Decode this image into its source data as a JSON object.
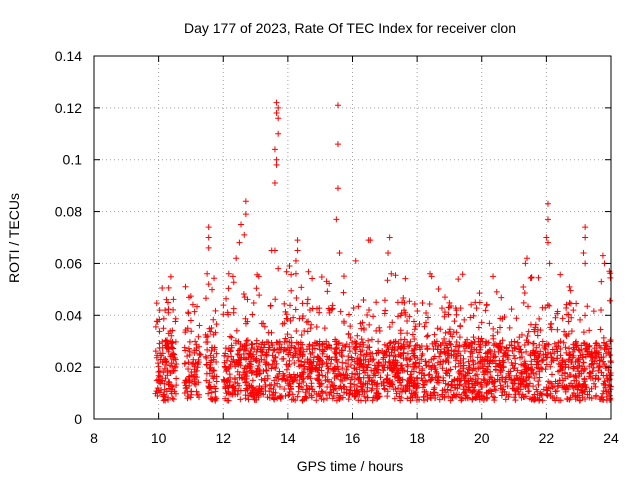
{
  "chart_data": {
    "type": "scatter",
    "title": "Day 177 of 2023, Rate Of TEC Index for receiver clon",
    "xlabel": "GPS time / hours",
    "ylabel": "ROTI / TECUs",
    "xlim": [
      8,
      24
    ],
    "ylim": [
      0,
      0.14
    ],
    "xticks": [
      "8",
      "10",
      "12",
      "14",
      "16",
      "18",
      "20",
      "22",
      "24"
    ],
    "xtick_values": [
      8,
      10,
      12,
      14,
      16,
      18,
      20,
      22,
      24
    ],
    "yticks": [
      "0",
      "0.02",
      "0.04",
      "0.06",
      "0.08",
      "0.1",
      "0.12",
      "0.14"
    ],
    "ytick_values": [
      0,
      0.02,
      0.04,
      0.06,
      0.08,
      0.1,
      0.12,
      0.14
    ],
    "grid": true,
    "marker": "+",
    "color": "#ff0000",
    "bulk_band": {
      "x_start": 9.9,
      "x_end": 24.0,
      "y_typical_min": 0.007,
      "y_typical_max": 0.03,
      "gaps_hours": [
        [
          10.55,
          10.8
        ],
        [
          11.3,
          11.45
        ],
        [
          11.8,
          12.0
        ]
      ]
    },
    "spike_points": [
      {
        "x": 10.15,
        "y": 0.035
      },
      {
        "x": 10.2,
        "y": 0.042
      },
      {
        "x": 10.3,
        "y": 0.041
      },
      {
        "x": 10.9,
        "y": 0.035
      },
      {
        "x": 11.0,
        "y": 0.038
      },
      {
        "x": 11.55,
        "y": 0.074
      },
      {
        "x": 11.55,
        "y": 0.07
      },
      {
        "x": 11.55,
        "y": 0.066
      },
      {
        "x": 11.5,
        "y": 0.056
      },
      {
        "x": 11.55,
        "y": 0.052
      },
      {
        "x": 12.3,
        "y": 0.055
      },
      {
        "x": 12.4,
        "y": 0.062
      },
      {
        "x": 12.5,
        "y": 0.068
      },
      {
        "x": 12.55,
        "y": 0.075
      },
      {
        "x": 12.7,
        "y": 0.084
      },
      {
        "x": 12.7,
        "y": 0.079
      },
      {
        "x": 12.65,
        "y": 0.071
      },
      {
        "x": 13.1,
        "y": 0.055
      },
      {
        "x": 13.65,
        "y": 0.122
      },
      {
        "x": 13.7,
        "y": 0.12
      },
      {
        "x": 13.65,
        "y": 0.118
      },
      {
        "x": 13.7,
        "y": 0.116
      },
      {
        "x": 13.7,
        "y": 0.11
      },
      {
        "x": 13.6,
        "y": 0.104
      },
      {
        "x": 13.65,
        "y": 0.1
      },
      {
        "x": 13.65,
        "y": 0.098
      },
      {
        "x": 13.6,
        "y": 0.091
      },
      {
        "x": 13.6,
        "y": 0.065
      },
      {
        "x": 13.5,
        "y": 0.065
      },
      {
        "x": 13.7,
        "y": 0.058
      },
      {
        "x": 14.05,
        "y": 0.059
      },
      {
        "x": 14.3,
        "y": 0.069
      },
      {
        "x": 14.3,
        "y": 0.065
      },
      {
        "x": 14.25,
        "y": 0.061
      },
      {
        "x": 14.25,
        "y": 0.056
      },
      {
        "x": 15.55,
        "y": 0.121
      },
      {
        "x": 15.55,
        "y": 0.106
      },
      {
        "x": 15.55,
        "y": 0.089
      },
      {
        "x": 15.5,
        "y": 0.077
      },
      {
        "x": 15.6,
        "y": 0.064
      },
      {
        "x": 16.1,
        "y": 0.061
      },
      {
        "x": 16.5,
        "y": 0.069
      },
      {
        "x": 16.55,
        "y": 0.069
      },
      {
        "x": 17.15,
        "y": 0.07
      },
      {
        "x": 17.1,
        "y": 0.064
      },
      {
        "x": 17.2,
        "y": 0.056
      },
      {
        "x": 18.4,
        "y": 0.056
      },
      {
        "x": 18.45,
        "y": 0.055
      },
      {
        "x": 20.35,
        "y": 0.055
      },
      {
        "x": 21.4,
        "y": 0.062
      },
      {
        "x": 21.35,
        "y": 0.06
      },
      {
        "x": 22.05,
        "y": 0.083
      },
      {
        "x": 22.05,
        "y": 0.077
      },
      {
        "x": 22.0,
        "y": 0.07
      },
      {
        "x": 22.05,
        "y": 0.068
      },
      {
        "x": 22.1,
        "y": 0.06
      },
      {
        "x": 23.2,
        "y": 0.074
      },
      {
        "x": 23.2,
        "y": 0.07
      },
      {
        "x": 23.15,
        "y": 0.064
      },
      {
        "x": 23.2,
        "y": 0.06
      },
      {
        "x": 23.75,
        "y": 0.063
      },
      {
        "x": 23.8,
        "y": 0.06
      },
      {
        "x": 23.95,
        "y": 0.057
      },
      {
        "x": 23.7,
        "y": 0.053
      }
    ]
  }
}
